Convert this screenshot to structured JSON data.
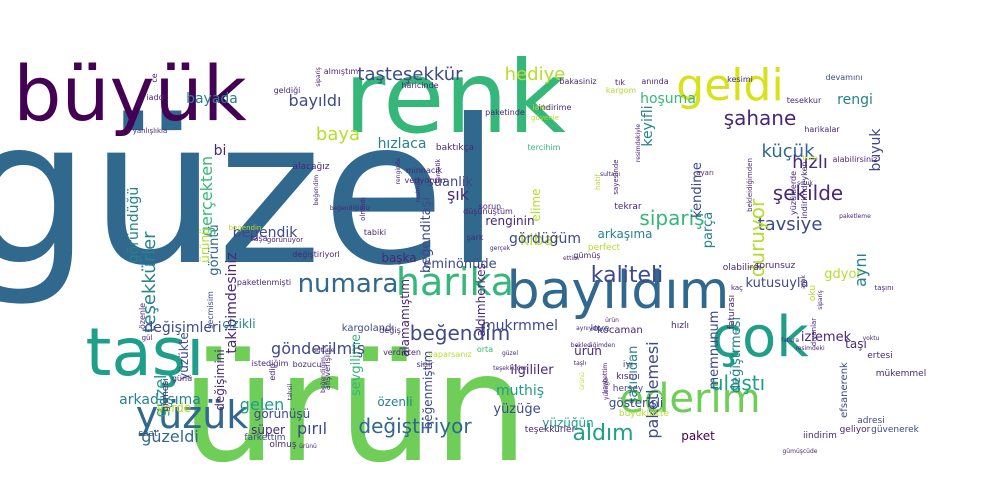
{
  "palette": {
    "dark_purple": "#440154",
    "purple": "#482878",
    "indigo": "#3e4a89",
    "blue": "#31688e",
    "steel": "#26828e",
    "teal": "#1f9e89",
    "green": "#35b779",
    "lime": "#6ece58",
    "yellowgreen": "#b5de2b",
    "yellow": "#d8e219"
  },
  "words": [
    {
      "text": "güzel",
      "size": 200,
      "color": "blue"
    },
    {
      "text": "ürün",
      "size": 150,
      "color": "lime"
    },
    {
      "text": "renk",
      "size": 100,
      "color": "green"
    },
    {
      "text": "büyük",
      "size": 76,
      "color": "dark_purple"
    },
    {
      "text": "taşı",
      "size": 66,
      "color": "teal"
    },
    {
      "text": "bayıldım",
      "size": 52,
      "color": "blue"
    },
    {
      "text": "çok",
      "size": 56,
      "color": "teal"
    },
    {
      "text": "harika",
      "size": 38,
      "color": "green"
    },
    {
      "text": "geldi",
      "size": 44,
      "color": "yellow"
    },
    {
      "text": "ederim",
      "size": 40,
      "color": "lime"
    },
    {
      "text": "yüzük",
      "size": 38,
      "color": "blue"
    },
    {
      "text": "numara",
      "size": 26,
      "color": "blue"
    },
    {
      "text": "kaliteli",
      "size": 22,
      "color": "indigo"
    },
    {
      "text": "beğendim",
      "size": 20,
      "color": "indigo"
    },
    {
      "text": "taşteşekkür",
      "size": 18,
      "color": "indigo"
    },
    {
      "text": "hediye",
      "size": 18,
      "color": "yellowgreen"
    },
    {
      "text": "şahane",
      "size": 20,
      "color": "purple"
    },
    {
      "text": "küçük",
      "size": 18,
      "color": "blue"
    },
    {
      "text": "hızlı",
      "size": 18,
      "color": "purple"
    },
    {
      "text": "şekilde",
      "size": 20,
      "color": "purple"
    },
    {
      "text": "tavsiye",
      "size": 18,
      "color": "indigo"
    },
    {
      "text": "sipariş",
      "size": 20,
      "color": "green"
    },
    {
      "text": "duruyor",
      "size": 20,
      "color": "yellowgreen"
    },
    {
      "text": "ulaştı",
      "size": 20,
      "color": "teal"
    },
    {
      "text": "değiştiriyor",
      "size": 20,
      "color": "blue"
    },
    {
      "text": "aldım",
      "size": 22,
      "color": "teal"
    },
    {
      "text": "pırıl",
      "size": 16,
      "color": "indigo"
    },
    {
      "text": "güzeldi",
      "size": 16,
      "color": "blue"
    },
    {
      "text": "bayada",
      "size": 14,
      "color": "steel"
    },
    {
      "text": "bayıldı",
      "size": 16,
      "color": "indigo"
    },
    {
      "text": "baya",
      "size": 18,
      "color": "yellowgreen"
    },
    {
      "text": "hızlaca",
      "size": 14,
      "color": "steel"
    },
    {
      "text": "şık",
      "size": 16,
      "color": "purple"
    },
    {
      "text": "suanlik",
      "size": 13,
      "color": "indigo"
    },
    {
      "text": "kibar",
      "size": 16,
      "color": "yellowgreen"
    },
    {
      "text": "gördüğüm",
      "size": 14,
      "color": "indigo"
    },
    {
      "text": "hoşuma",
      "size": 14,
      "color": "green"
    },
    {
      "text": "keyifli",
      "size": 14,
      "color": "steel"
    },
    {
      "text": "rengi",
      "size": 14,
      "color": "steel"
    },
    {
      "text": "buyuk",
      "size": 14,
      "color": "indigo"
    },
    {
      "text": "kendime",
      "size": 13,
      "color": "indigo"
    },
    {
      "text": "kutusuyla",
      "size": 13,
      "color": "indigo"
    },
    {
      "text": "gdyor",
      "size": 13,
      "color": "yellowgreen"
    },
    {
      "text": "aynı",
      "size": 16,
      "color": "steel"
    },
    {
      "text": "parça",
      "size": 13,
      "color": "steel"
    },
    {
      "text": "değiştrmesi",
      "size": 13,
      "color": "steel"
    },
    {
      "text": "paketlemesi",
      "size": 16,
      "color": "indigo"
    },
    {
      "text": "memnunum",
      "size": 13,
      "color": "indigo"
    },
    {
      "text": "izlemek",
      "size": 13,
      "color": "purple"
    },
    {
      "text": "taşı",
      "size": 12,
      "color": "purple"
    },
    {
      "text": "görüntü",
      "size": 13,
      "color": "blue"
    },
    {
      "text": "gerçekten",
      "size": 16,
      "color": "green"
    },
    {
      "text": "teşekkürler",
      "size": 18,
      "color": "steel"
    },
    {
      "text": "göründüğü",
      "size": 14,
      "color": "steel"
    },
    {
      "text": "takibimdesiniz",
      "size": 14,
      "color": "purple"
    },
    {
      "text": "ürünü",
      "size": 12,
      "color": "yellowgreen"
    },
    {
      "text": "beğendik",
      "size": 14,
      "color": "indigo"
    },
    {
      "text": "değişimini",
      "size": 12,
      "color": "purple"
    },
    {
      "text": "yüzükte",
      "size": 12,
      "color": "indigo"
    },
    {
      "text": "çizikli",
      "size": 12,
      "color": "steel"
    },
    {
      "text": "değişimleri",
      "size": 14,
      "color": "indigo"
    },
    {
      "text": "guzel",
      "size": 16,
      "color": "teal"
    },
    {
      "text": "arkadaşıma",
      "size": 14,
      "color": "steel"
    },
    {
      "text": "gelen",
      "size": 16,
      "color": "teal"
    },
    {
      "text": "sevgilime",
      "size": 13,
      "color": "green"
    },
    {
      "text": "gönderilmiş",
      "size": 16,
      "color": "indigo"
    },
    {
      "text": "ilgililer",
      "size": 13,
      "color": "purple"
    },
    {
      "text": "muthiş",
      "size": 14,
      "color": "teal"
    },
    {
      "text": "yüzüğe",
      "size": 13,
      "color": "indigo"
    },
    {
      "text": "satıcıdan",
      "size": 13,
      "color": "steel"
    },
    {
      "text": "mukrmmel",
      "size": 14,
      "color": "indigo"
    },
    {
      "text": "eminönüde",
      "size": 13,
      "color": "indigo"
    },
    {
      "text": "başka",
      "size": 12,
      "color": "purple"
    },
    {
      "text": "kargolandı",
      "size": 10,
      "color": "indigo"
    },
    {
      "text": "aldımherkes",
      "size": 12,
      "color": "purple"
    },
    {
      "text": "renginin",
      "size": 12,
      "color": "purple"
    },
    {
      "text": "elime",
      "size": 12,
      "color": "yellowgreen"
    },
    {
      "text": "alamamıştım",
      "size": 12,
      "color": "purple"
    },
    {
      "text": "beğenditaşı",
      "size": 13,
      "color": "indigo"
    },
    {
      "text": "gösterişli",
      "size": 12,
      "color": "indigo"
    },
    {
      "text": "paket",
      "size": 12,
      "color": "dark_purple"
    },
    {
      "text": "yüzüğün",
      "size": 12,
      "color": "teal"
    },
    {
      "text": "yerde",
      "size": 12,
      "color": "yellowgreen"
    },
    {
      "text": "süper",
      "size": 12,
      "color": "purple"
    },
    {
      "text": "ürün",
      "size": 12,
      "color": "purple"
    },
    {
      "text": "özenli",
      "size": 12,
      "color": "steel"
    },
    {
      "text": "beğenmiştim",
      "size": 12,
      "color": "indigo"
    },
    {
      "text": "görünüşü",
      "size": 12,
      "color": "indigo"
    },
    {
      "text": "bi",
      "size": 14,
      "color": "purple"
    },
    {
      "text": "arkaşıma",
      "size": 12,
      "color": "steel"
    },
    {
      "text": "efsanerenk",
      "size": 10,
      "color": "indigo"
    },
    {
      "text": "sorunsuz",
      "size": 9,
      "color": "purple"
    },
    {
      "text": "olabilirdi",
      "size": 9,
      "color": "purple"
    },
    {
      "text": "oku",
      "size": 9,
      "color": "yellowgreen"
    },
    {
      "text": "ertesi",
      "size": 9,
      "color": "purple"
    },
    {
      "text": "hızlı",
      "size": 9,
      "color": "purple"
    },
    {
      "text": "kocaman",
      "size": 10,
      "color": "purple"
    },
    {
      "text": "love",
      "size": 9,
      "color": "indigo"
    },
    {
      "text": "iyi",
      "size": 9,
      "color": "indigo"
    },
    {
      "text": "kısmı",
      "size": 9,
      "color": "purple"
    },
    {
      "text": "herşey",
      "size": 9,
      "color": "indigo"
    },
    {
      "text": "adresi",
      "size": 9,
      "color": "indigo"
    },
    {
      "text": "mükemmel",
      "size": 9,
      "color": "purple"
    },
    {
      "text": "geliyor",
      "size": 9,
      "color": "purple"
    },
    {
      "text": "güvenerek",
      "size": 9,
      "color": "indigo"
    },
    {
      "text": "iindirim",
      "size": 9,
      "color": "purple"
    },
    {
      "text": "teşekkürler",
      "size": 9,
      "color": "purple"
    },
    {
      "text": "büyüklükte",
      "size": 9,
      "color": "yellowgreen"
    },
    {
      "text": "olmuş",
      "size": 9,
      "color": "purple"
    },
    {
      "text": "farkettim",
      "size": 9,
      "color": "indigo"
    },
    {
      "text": "saat",
      "size": 9,
      "color": "indigo"
    },
    {
      "text": "girmesi",
      "size": 9,
      "color": "purple"
    },
    {
      "text": "günü",
      "size": 8,
      "color": "purple"
    },
    {
      "text": "edip",
      "size": 8,
      "color": "purple"
    },
    {
      "text": "istediğim",
      "size": 8,
      "color": "purple"
    },
    {
      "text": "bozucu",
      "size": 8,
      "color": "purple"
    },
    {
      "text": "değiş",
      "size": 8,
      "color": "purple"
    },
    {
      "text": "orta",
      "size": 8,
      "color": "green"
    },
    {
      "text": "yaparsanız",
      "size": 8,
      "color": "yellowgreen"
    },
    {
      "text": "sinir",
      "size": 8,
      "color": "purple"
    },
    {
      "text": "verdikten",
      "size": 8,
      "color": "purple"
    },
    {
      "text": "alışverişin",
      "size": 8,
      "color": "purple"
    },
    {
      "text": "paketlenmişti",
      "size": 8,
      "color": "purple"
    },
    {
      "text": "secmisim",
      "size": 8,
      "color": "indigo"
    },
    {
      "text": "gül",
      "size": 7,
      "color": "purple"
    },
    {
      "text": "özenle",
      "size": 8,
      "color": "purple"
    },
    {
      "text": "değiştiriyorl",
      "size": 8,
      "color": "purple"
    },
    {
      "text": "görünüyor",
      "size": 7,
      "color": "purple"
    },
    {
      "text": "beğendin",
      "size": 7,
      "color": "yellowgreen"
    },
    {
      "text": "taşa",
      "size": 8,
      "color": "purple"
    },
    {
      "text": "tabiki",
      "size": 8,
      "color": "purple"
    },
    {
      "text": "olmadı",
      "size": 7,
      "color": "purple"
    },
    {
      "text": "düşünüştüm",
      "size": 8,
      "color": "purple"
    },
    {
      "text": "sorun",
      "size": 8,
      "color": "purple"
    },
    {
      "text": "tekrar",
      "size": 9,
      "color": "purple"
    },
    {
      "text": "perfect",
      "size": 9,
      "color": "yellowgreen"
    },
    {
      "text": "şark",
      "size": 8,
      "color": "purple"
    },
    {
      "text": "gümüş",
      "size": 8,
      "color": "purple"
    },
    {
      "text": "kaç",
      "size": 7,
      "color": "purple"
    },
    {
      "text": "faturası",
      "size": 9,
      "color": "purple"
    },
    {
      "text": "tercihim",
      "size": 8,
      "color": "green"
    },
    {
      "text": "baktıkça",
      "size": 9,
      "color": "purple"
    },
    {
      "text": "iade",
      "size": 8,
      "color": "yellowgreen"
    },
    {
      "text": "ayarı",
      "size": 7,
      "color": "purple"
    },
    {
      "text": "veriyorum",
      "size": 8,
      "color": "purple"
    },
    {
      "text": "minnacık",
      "size": 8,
      "color": "purple"
    },
    {
      "text": "alacağız",
      "size": 9,
      "color": "purple"
    },
    {
      "text": "yanlışlıkla",
      "size": 7,
      "color": "purple"
    },
    {
      "text": "ce",
      "size": 8,
      "color": "purple"
    },
    {
      "text": "iadd",
      "size": 8,
      "color": "purple"
    },
    {
      "text": "geldiği",
      "size": 8,
      "color": "purple"
    },
    {
      "text": "almıştım",
      "size": 8,
      "color": "purple"
    },
    {
      "text": "haricinde",
      "size": 8,
      "color": "purple"
    },
    {
      "text": "bakasiniz",
      "size": 8,
      "color": "purple"
    },
    {
      "text": "tık",
      "size": 8,
      "color": "purple"
    },
    {
      "text": "anında",
      "size": 8,
      "color": "purple"
    },
    {
      "text": "kargom",
      "size": 8,
      "color": "yellowgreen"
    },
    {
      "text": "indirime",
      "size": 8,
      "color": "purple"
    },
    {
      "text": "paketinde",
      "size": 8,
      "color": "purple"
    },
    {
      "text": "kesimi",
      "size": 8,
      "color": "purple"
    },
    {
      "text": "devamını",
      "size": 8,
      "color": "indigo"
    },
    {
      "text": "tesekkur",
      "size": 8,
      "color": "purple"
    },
    {
      "text": "harikalar",
      "size": 8,
      "color": "purple"
    },
    {
      "text": "alabilirsiniz",
      "size": 8,
      "color": "purple"
    },
    {
      "text": "indirimdeyken",
      "size": 8,
      "color": "purple"
    },
    {
      "text": "yüzüklerde",
      "size": 8,
      "color": "purple"
    },
    {
      "text": "bekleidiğimden",
      "size": 7,
      "color": "purple"
    },
    {
      "text": "artık",
      "size": 6,
      "color": "purple"
    },
    {
      "text": "taşını",
      "size": 7,
      "color": "purple"
    },
    {
      "text": "diyanlar",
      "size": 7,
      "color": "purple"
    },
    {
      "text": "hatif",
      "size": 7,
      "color": "yellowgreen"
    },
    {
      "text": "sayesinde",
      "size": 7,
      "color": "purple"
    },
    {
      "text": "gümüşcüde",
      "size": 6,
      "color": "purple"
    },
    {
      "text": "yoktu",
      "size": 6,
      "color": "purple"
    },
    {
      "text": "ürünü",
      "size": 6,
      "color": "purple"
    },
    {
      "text": "soluk",
      "size": 6,
      "color": "purple"
    },
    {
      "text": "resimdekiyle",
      "size": 6,
      "color": "purple"
    },
    {
      "text": "buda",
      "size": 6,
      "color": "yellowgreen"
    },
    {
      "text": "sentetik",
      "size": 6,
      "color": "purple"
    },
    {
      "text": "ettim",
      "size": 6,
      "color": "purple"
    },
    {
      "text": "resimdeki",
      "size": 6,
      "color": "purple"
    },
    {
      "text": "fatura",
      "size": 6,
      "color": "purple"
    },
    {
      "text": "taşlı",
      "size": 6,
      "color": "purple"
    },
    {
      "text": "beğendiğimiz",
      "size": 6,
      "color": "purple"
    },
    {
      "text": "tahsil",
      "size": 6,
      "color": "purple"
    },
    {
      "text": "renginde",
      "size": 6,
      "color": "purple"
    },
    {
      "text": "güvenle",
      "size": 7,
      "color": "yellowgreen"
    },
    {
      "text": "yüzüğü",
      "size": 6,
      "color": "purple"
    },
    {
      "text": "kaybettim",
      "size": 6,
      "color": "purple"
    },
    {
      "text": "beklediğimden",
      "size": 6,
      "color": "purple"
    },
    {
      "text": "beğendiğim",
      "size": 6,
      "color": "purple"
    },
    {
      "text": "sütüne",
      "size": 6,
      "color": "purple"
    },
    {
      "text": "paketleme",
      "size": 6,
      "color": "purple"
    },
    {
      "text": "sipariş",
      "size": 6,
      "color": "purple"
    },
    {
      "text": "ürünü",
      "size": 6,
      "color": "yellowgreen"
    },
    {
      "text": "resimde",
      "size": 6,
      "color": "purple"
    },
    {
      "text": "sultanı",
      "size": 6,
      "color": "purple"
    },
    {
      "text": "aynıydı",
      "size": 6,
      "color": "purple"
    },
    {
      "text": "sipariş",
      "size": 6,
      "color": "purple"
    },
    {
      "text": "beğendim",
      "size": 6,
      "color": "purple"
    },
    {
      "text": "teşekkürler",
      "size": 6,
      "color": "purple"
    },
    {
      "text": "ürün",
      "size": 6,
      "color": "purple"
    },
    {
      "text": "güzel",
      "size": 6,
      "color": "purple"
    },
    {
      "text": "gerçek",
      "size": 6,
      "color": "purple"
    }
  ]
}
